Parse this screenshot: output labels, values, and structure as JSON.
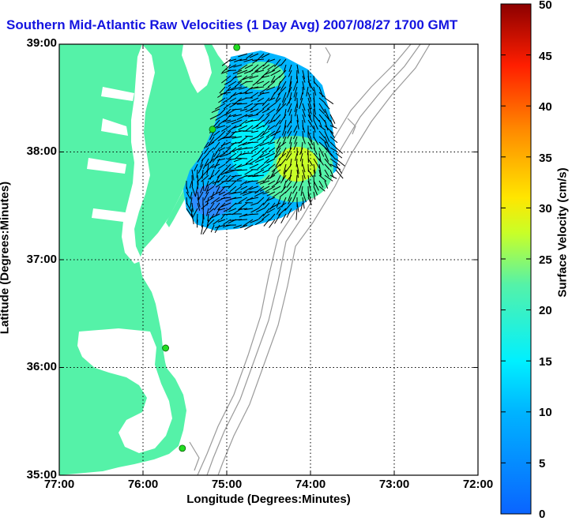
{
  "title": "Southern Mid-Atlantic Raw Velocities (1 Day Avg) 2007/08/27 1700 GMT",
  "map": {
    "xlabel": "Longitude (Degrees:Minutes)",
    "ylabel": "Latitude (Degrees:Minutes)",
    "lon_ticks": [
      "77:00",
      "76:00",
      "75:00",
      "74:00",
      "73:00",
      "72:00"
    ],
    "lat_ticks": [
      "39:00",
      "38:00",
      "37:00",
      "36:00",
      "35:00"
    ],
    "lon_range": [
      -77,
      -72
    ],
    "lat_range": [
      35,
      39
    ],
    "grid": "dotted",
    "land_color": "#55f2a8",
    "water_color": "#ffffff",
    "bathymetry_color": "#9a9a9a",
    "station_color": "#22dd22",
    "stations": [
      {
        "lon": -74.88,
        "lat": 38.97
      },
      {
        "lon": -75.17,
        "lat": 38.21
      },
      {
        "lon": -75.73,
        "lat": 36.18
      },
      {
        "lon": -75.53,
        "lat": 35.25
      }
    ]
  },
  "colorbar": {
    "label": "Surface Velocity (cm/s)",
    "ticks": [
      "0",
      "5",
      "10",
      "15",
      "20",
      "25",
      "30",
      "35",
      "40",
      "45",
      "50"
    ],
    "min": 0,
    "max": 50,
    "colormap": "jet"
  }
}
